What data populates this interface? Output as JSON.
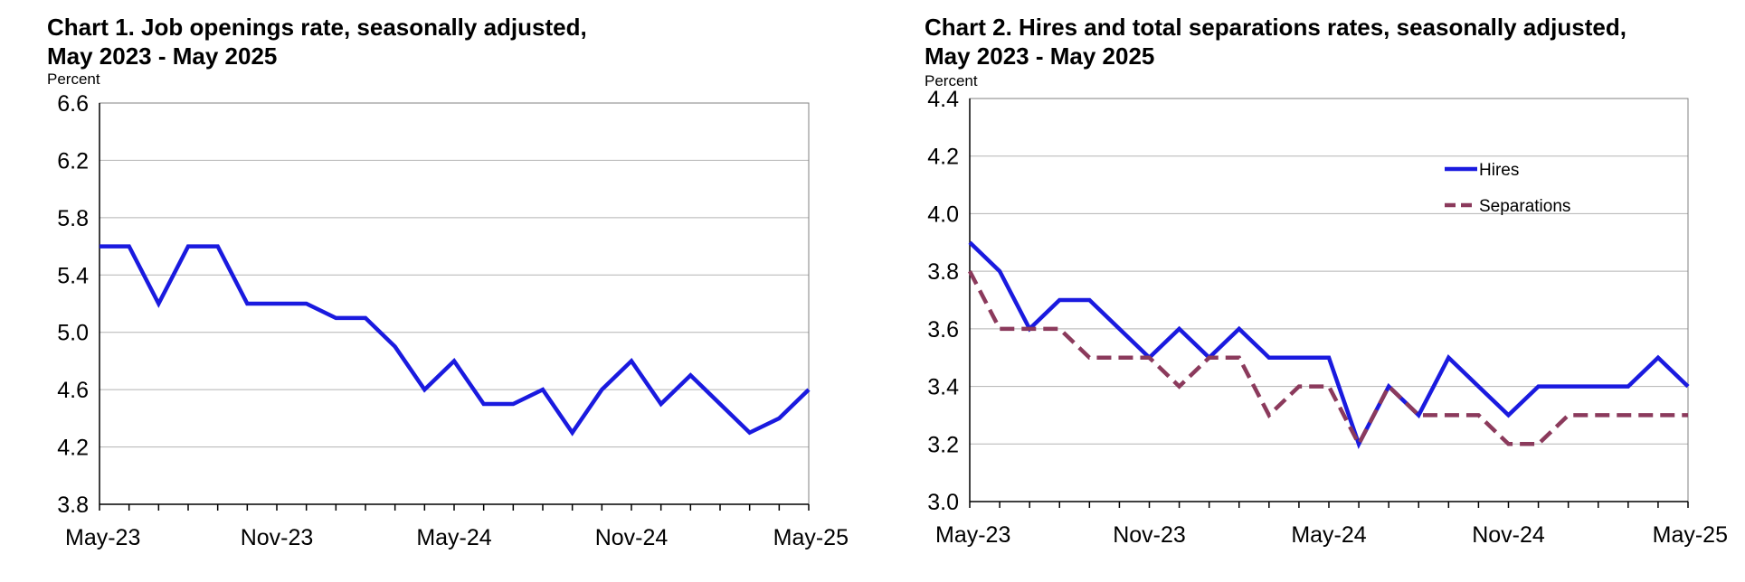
{
  "chart_data": [
    {
      "type": "line",
      "title": "Chart 1. Job openings rate, seasonally adjusted,",
      "subtitle": "May 2023 - May 2025",
      "ylabel": "Percent",
      "xlabel": "",
      "ylim": [
        3.8,
        6.6
      ],
      "yticks": [
        "6.6",
        "6.2",
        "5.8",
        "5.4",
        "5.0",
        "4.6",
        "4.2",
        "3.8"
      ],
      "xticks": [
        "May-23",
        "Nov-23",
        "May-24",
        "Nov-24",
        "May-25"
      ],
      "x": [
        "May-23",
        "Jun-23",
        "Jul-23",
        "Aug-23",
        "Sep-23",
        "Oct-23",
        "Nov-23",
        "Dec-23",
        "Jan-24",
        "Feb-24",
        "Mar-24",
        "Apr-24",
        "May-24",
        "Jun-24",
        "Jul-24",
        "Aug-24",
        "Sep-24",
        "Oct-24",
        "Nov-24",
        "Dec-24",
        "Jan-25",
        "Feb-25",
        "Mar-25",
        "Apr-25",
        "May-25"
      ],
      "grid": true,
      "legend": "none",
      "series": [
        {
          "color": "#1a1adf",
          "dash": "solid",
          "values": [
            5.6,
            5.6,
            5.2,
            5.6,
            5.6,
            5.2,
            5.2,
            5.2,
            5.1,
            5.1,
            4.9,
            4.6,
            4.8,
            4.5,
            4.5,
            4.6,
            4.3,
            4.6,
            4.8,
            4.5,
            4.7,
            4.5,
            4.3,
            4.4,
            4.6
          ]
        }
      ]
    },
    {
      "type": "line",
      "title": "Chart 2. Hires and total separations rates, seasonally adjusted,",
      "subtitle": "May 2023 - May 2025",
      "ylabel": "Percent",
      "xlabel": "",
      "ylim": [
        3.0,
        4.4
      ],
      "yticks": [
        "4.4",
        "4.2",
        "4.0",
        "3.8",
        "3.6",
        "3.4",
        "3.2",
        "3.0"
      ],
      "xticks": [
        "May-23",
        "Nov-23",
        "May-24",
        "Nov-24",
        "May-25"
      ],
      "x": [
        "May-23",
        "Jun-23",
        "Jul-23",
        "Aug-23",
        "Sep-23",
        "Oct-23",
        "Nov-23",
        "Dec-23",
        "Jan-24",
        "Feb-24",
        "Mar-24",
        "Apr-24",
        "May-24",
        "Jun-24",
        "Jul-24",
        "Aug-24",
        "Sep-24",
        "Oct-24",
        "Nov-24",
        "Dec-24",
        "Jan-25",
        "Feb-25",
        "Mar-25",
        "Apr-25",
        "May-25"
      ],
      "grid": true,
      "legend": "top-right",
      "series": [
        {
          "name": "Hires",
          "color": "#1a1adf",
          "dash": "solid",
          "values": [
            3.9,
            3.8,
            3.6,
            3.7,
            3.7,
            3.6,
            3.5,
            3.6,
            3.5,
            3.6,
            3.5,
            3.5,
            3.5,
            3.2,
            3.4,
            3.3,
            3.5,
            3.4,
            3.3,
            3.4,
            3.4,
            3.4,
            3.4,
            3.5,
            3.4
          ]
        },
        {
          "name": "Separations",
          "color": "#8b3a5c",
          "dash": "dashed",
          "values": [
            3.8,
            3.6,
            3.6,
            3.6,
            3.5,
            3.5,
            3.5,
            3.4,
            3.5,
            3.5,
            3.3,
            3.4,
            3.4,
            3.2,
            3.4,
            3.3,
            3.3,
            3.3,
            3.2,
            3.2,
            3.3,
            3.3,
            3.3,
            3.3,
            3.3
          ]
        }
      ]
    }
  ]
}
